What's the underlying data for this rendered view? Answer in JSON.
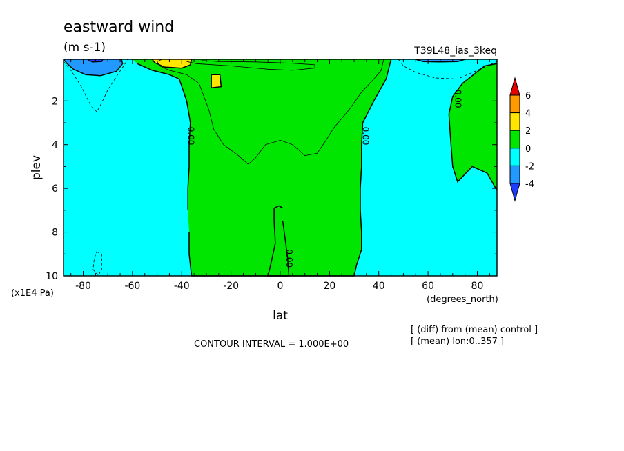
{
  "chart_data": {
    "type": "contour",
    "title": "eastward wind",
    "units": "(m s-1)",
    "run_label": "T39L48_ias_3keq",
    "xlabel": "lat",
    "xunits": "(degrees_north)",
    "ylabel": "plev",
    "yunits": "(x1E4 Pa)",
    "xlim": [
      -88,
      88
    ],
    "ylim": [
      0.1,
      10
    ],
    "y_inverted": true,
    "x_ticks": [
      -80,
      -60,
      -40,
      -20,
      0,
      20,
      40,
      60,
      80
    ],
    "x_tick_labels": [
      "-80",
      "-60",
      "-40",
      "-20",
      "0",
      "20",
      "40",
      "60",
      "80"
    ],
    "y_ticks": [
      2,
      4,
      6,
      8,
      10
    ],
    "y_tick_labels": [
      "2",
      "4",
      "6",
      "8",
      "10"
    ],
    "contour_interval_text": "CONTOUR INTERVAL = 1.000E+00",
    "notes": [
      "[ (diff) from (mean) control ]",
      "[ (mean) lon:0..357 ]"
    ],
    "contour_labels": [
      {
        "text": "0.00",
        "lat": -36.5,
        "plev": 3.6
      },
      {
        "text": "0.00",
        "lat": 34.5,
        "plev": 3.6
      },
      {
        "text": "0.00",
        "lat": 3.5,
        "plev": 9.2
      },
      {
        "text": "0.00",
        "lat": 72,
        "plev": 1.9
      }
    ],
    "colorbar": {
      "levels": [
        6,
        4,
        2,
        0,
        -2,
        -4
      ],
      "labels": [
        "6",
        "4",
        "2",
        "0",
        "-2",
        "-4"
      ],
      "colors": [
        "#e60000",
        "#ff9900",
        "#ffe600",
        "#00e600",
        "#00ffff",
        "#2299ff",
        "#1e3cff"
      ]
    },
    "regions": [
      {
        "level": "0 to 2",
        "color": "#00e600",
        "desc": "positive region",
        "path": [
          [
            -60,
            0.1
          ],
          [
            45,
            0.1
          ],
          [
            43,
            1.0
          ],
          [
            38,
            2.0
          ],
          [
            33.5,
            3.0
          ],
          [
            33,
            4.0
          ],
          [
            33,
            5.0
          ],
          [
            32.5,
            6.0
          ],
          [
            32.5,
            7.0
          ],
          [
            33,
            8.0
          ],
          [
            33,
            8.8
          ],
          [
            31,
            9.5
          ],
          [
            30,
            10
          ],
          [
            -5,
            10
          ],
          [
            -3.5,
            9.3
          ],
          [
            -2,
            8.5
          ],
          [
            -2.5,
            7.5
          ],
          [
            -2.5,
            6.9
          ],
          [
            -0.5,
            6.8
          ],
          [
            1,
            6.9
          ],
          [
            1,
            7.5
          ],
          [
            2,
            8.3
          ],
          [
            3,
            9.2
          ],
          [
            3.5,
            10
          ],
          [
            -36,
            10
          ],
          [
            -37,
            9.0
          ],
          [
            -37,
            8.0
          ],
          [
            -37.5,
            7.0
          ],
          [
            -37.5,
            6.0
          ],
          [
            -37,
            5.0
          ],
          [
            -37,
            4.0
          ],
          [
            -36.5,
            3.0
          ],
          [
            -38,
            2.0
          ],
          [
            -41,
            1.0
          ],
          [
            -45,
            0.8
          ],
          [
            -52,
            0.6
          ],
          [
            -58,
            0.3
          ]
        ]
      },
      {
        "level": "0 to 2",
        "color": "#00e600",
        "desc": "positive region",
        "path": [
          [
            88,
            0.3
          ],
          [
            83,
            0.4
          ],
          [
            74,
            1.2
          ],
          [
            70,
            1.8
          ],
          [
            68.5,
            2.6
          ],
          [
            69,
            3.5
          ],
          [
            70,
            5.0
          ],
          [
            72,
            5.7
          ],
          [
            78,
            5.0
          ],
          [
            84,
            5.3
          ],
          [
            88,
            6.1
          ]
        ]
      },
      {
        "level": "2 to 4",
        "color": "#ffe600",
        "desc": "positive region",
        "path": [
          [
            -52,
            0.1
          ],
          [
            -36,
            0.1
          ],
          [
            -36.5,
            0.35
          ],
          [
            -40,
            0.5
          ],
          [
            -47,
            0.45
          ],
          [
            -51,
            0.25
          ]
        ]
      },
      {
        "level": "2 to 4",
        "color": "#ffe600",
        "desc": "positive region",
        "path": [
          [
            -28,
            0.8
          ],
          [
            -24.5,
            0.8
          ],
          [
            -24,
            1.35
          ],
          [
            -28,
            1.4
          ]
        ]
      },
      {
        "level": "-2 to -4",
        "color": "#2299ff",
        "desc": "negative region",
        "path": [
          [
            -88,
            0.1
          ],
          [
            -64.5,
            0.1
          ],
          [
            -64,
            0.3
          ],
          [
            -66.5,
            0.65
          ],
          [
            -73,
            0.85
          ],
          [
            -79,
            0.8
          ],
          [
            -84,
            0.55
          ],
          [
            -86.5,
            0.3
          ]
        ]
      },
      {
        "level": "-2 to -4",
        "color": "#2299ff",
        "desc": "negative region",
        "path": [
          [
            55,
            0.1
          ],
          [
            75,
            0.1
          ],
          [
            72,
            0.2
          ],
          [
            65,
            0.22
          ],
          [
            58,
            0.2
          ]
        ]
      },
      {
        "level": "-4 to -6",
        "color": "#1e3cff",
        "desc": "negative region",
        "path": [
          [
            -78,
            0.1
          ],
          [
            -72,
            0.1
          ],
          [
            -72.5,
            0.2
          ],
          [
            -76,
            0.22
          ],
          [
            -78,
            0.15
          ]
        ]
      }
    ],
    "contours": [
      {
        "value": 0,
        "style": "solid",
        "closed": true,
        "points": [
          [
            -28,
            0.8
          ],
          [
            -24.5,
            0.8
          ],
          [
            -24,
            1.35
          ],
          [
            -28,
            1.4
          ]
        ]
      },
      {
        "value": 0,
        "style": "solid",
        "closed": false,
        "points": [
          [
            -52,
            0.1
          ],
          [
            -51,
            0.25
          ],
          [
            -47,
            0.45
          ],
          [
            -40,
            0.5
          ],
          [
            -36.5,
            0.35
          ],
          [
            -36,
            0.1
          ]
        ]
      },
      {
        "value": 0,
        "style": "solid",
        "closed": false,
        "points": [
          [
            -88,
            0.1
          ],
          [
            -86.5,
            0.3
          ],
          [
            -84,
            0.55
          ],
          [
            -79,
            0.8
          ],
          [
            -73,
            0.85
          ],
          [
            -66.5,
            0.65
          ],
          [
            -64,
            0.3
          ],
          [
            -64.5,
            0.1
          ]
        ]
      },
      {
        "value": 0,
        "style": "solid",
        "closed": false,
        "points": [
          [
            55,
            0.1
          ],
          [
            58,
            0.2
          ],
          [
            65,
            0.22
          ],
          [
            72,
            0.2
          ],
          [
            75,
            0.1
          ]
        ]
      },
      {
        "value": 0,
        "style": "solid",
        "closed": false,
        "points": [
          [
            -78,
            0.1
          ],
          [
            -78,
            0.15
          ],
          [
            -76,
            0.22
          ],
          [
            -72.5,
            0.2
          ],
          [
            -72,
            0.1
          ]
        ]
      },
      {
        "value": 1,
        "style": "thin",
        "closed": false,
        "points": [
          [
            -48,
            0.1
          ],
          [
            -50,
            0.2
          ],
          [
            -49,
            0.4
          ],
          [
            -45,
            0.6
          ],
          [
            -38,
            0.8
          ],
          [
            -33,
            1.2
          ],
          [
            -31,
            1.8
          ],
          [
            -29,
            2.4
          ],
          [
            -27,
            3.3
          ],
          [
            -23,
            4.0
          ],
          [
            -17,
            4.5
          ],
          [
            -13,
            4.9
          ],
          [
            -10,
            4.6
          ],
          [
            -6,
            4.0
          ],
          [
            0,
            3.8
          ],
          [
            5,
            4.0
          ],
          [
            10,
            4.5
          ],
          [
            15,
            4.4
          ],
          [
            18,
            3.9
          ],
          [
            22,
            3.2
          ],
          [
            28,
            2.4
          ],
          [
            33,
            1.6
          ],
          [
            38,
            1.0
          ],
          [
            41,
            0.6
          ],
          [
            42,
            0.1
          ]
        ]
      },
      {
        "value": 1,
        "style": "thin",
        "closed": false,
        "points": [
          [
            -38,
            0.2
          ],
          [
            -34,
            0.3
          ],
          [
            -20,
            0.4
          ],
          [
            -5,
            0.55
          ],
          [
            5,
            0.6
          ],
          [
            14,
            0.5
          ],
          [
            14,
            0.35
          ],
          [
            5,
            0.28
          ],
          [
            -10,
            0.22
          ],
          [
            -25,
            0.2
          ],
          [
            -32,
            0.15
          ]
        ]
      },
      {
        "value": -1,
        "style": "dashed",
        "closed": false,
        "points": [
          [
            -88,
            0.2
          ],
          [
            -85,
            0.6
          ],
          [
            -81,
            1.3
          ],
          [
            -77,
            2.2
          ],
          [
            -74.5,
            2.5
          ],
          [
            -73,
            2.2
          ],
          [
            -70,
            1.5
          ],
          [
            -66,
            0.8
          ],
          [
            -63,
            0.3
          ],
          [
            -62,
            0.1
          ]
        ]
      },
      {
        "value": -1,
        "style": "dashed",
        "closed": false,
        "points": [
          [
            48,
            0.1
          ],
          [
            50,
            0.4
          ],
          [
            55,
            0.7
          ],
          [
            63,
            0.95
          ],
          [
            72,
            1.0
          ],
          [
            80,
            0.6
          ],
          [
            86,
            0.3
          ],
          [
            88,
            0.2
          ]
        ]
      },
      {
        "value": -1,
        "style": "dashed",
        "closed": true,
        "points": [
          [
            -74.5,
            8.9
          ],
          [
            -72.5,
            9.0
          ],
          [
            -72.5,
            9.7
          ],
          [
            -74,
            10.0
          ],
          [
            -76,
            9.7
          ],
          [
            -75.5,
            9.2
          ]
        ]
      }
    ]
  }
}
